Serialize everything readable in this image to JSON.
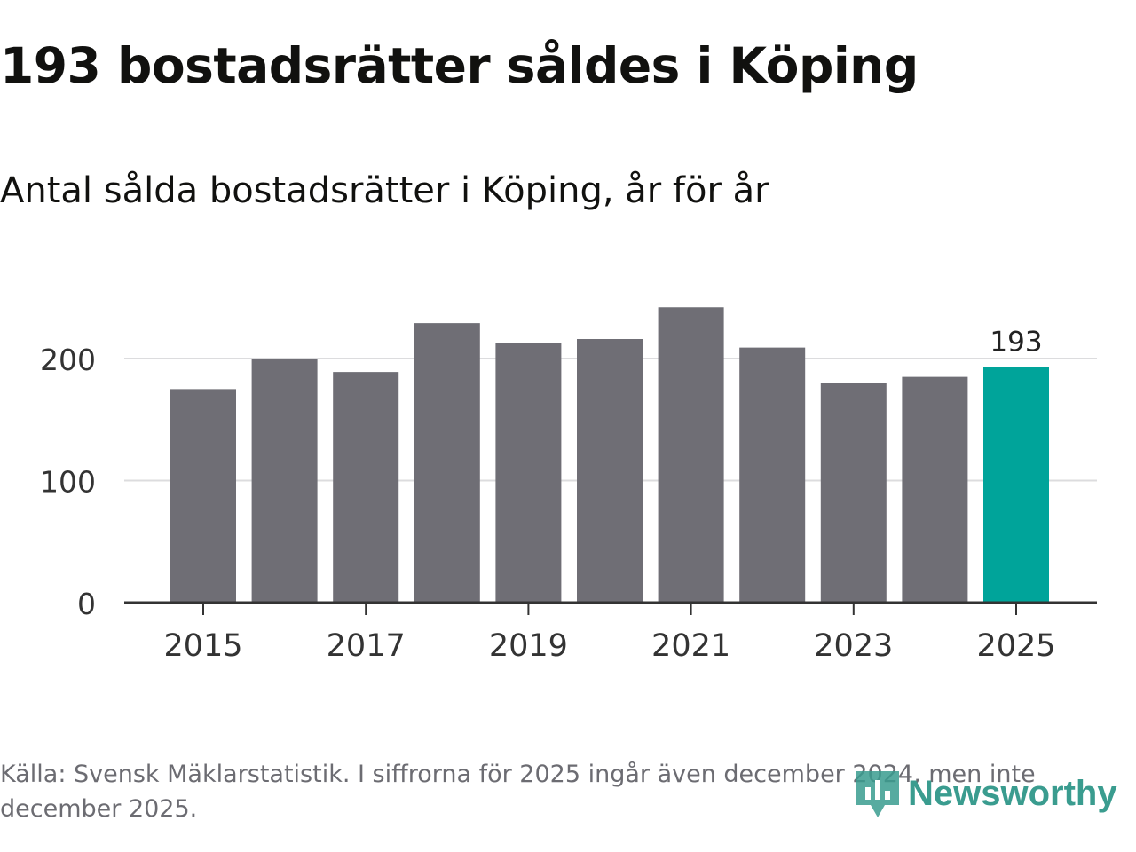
{
  "header": {
    "title": "193 bostadsrätter såldes i Köping",
    "subtitle": "Antal sålda bostadsrätter i Köping, år för år"
  },
  "footer": {
    "source": "Källa: Svensk Mäklarstatistik. I siffrorna för 2025 ingår även december 2024, men inte december 2025.",
    "brand": "Newsworthy",
    "brand_icon": "newsworthy-logo-icon"
  },
  "colors": {
    "bar": "#6f6e75",
    "highlight": "#00a49a",
    "grid": "#dcdcde",
    "axis": "#333333",
    "text": "#333333",
    "brand": "#3a9c8f"
  },
  "chart_data": {
    "type": "bar",
    "title": "Antal sålda bostadsrätter i Köping, år för år",
    "xlabel": "",
    "ylabel": "",
    "categories": [
      "2015",
      "2016",
      "2017",
      "2018",
      "2019",
      "2020",
      "2021",
      "2022",
      "2023",
      "2024",
      "2025"
    ],
    "values": [
      175,
      200,
      189,
      229,
      213,
      216,
      242,
      209,
      180,
      185,
      193
    ],
    "highlight": "2025",
    "data_labels": [
      {
        "category": "2025",
        "text": "193"
      }
    ],
    "x_tick_labels": [
      "2015",
      "2017",
      "2019",
      "2021",
      "2023",
      "2025"
    ],
    "y_ticks": [
      0,
      100,
      200
    ],
    "y_tick_labels": [
      "0",
      "100",
      "200"
    ],
    "ylim": [
      0,
      250
    ],
    "grid": true
  }
}
